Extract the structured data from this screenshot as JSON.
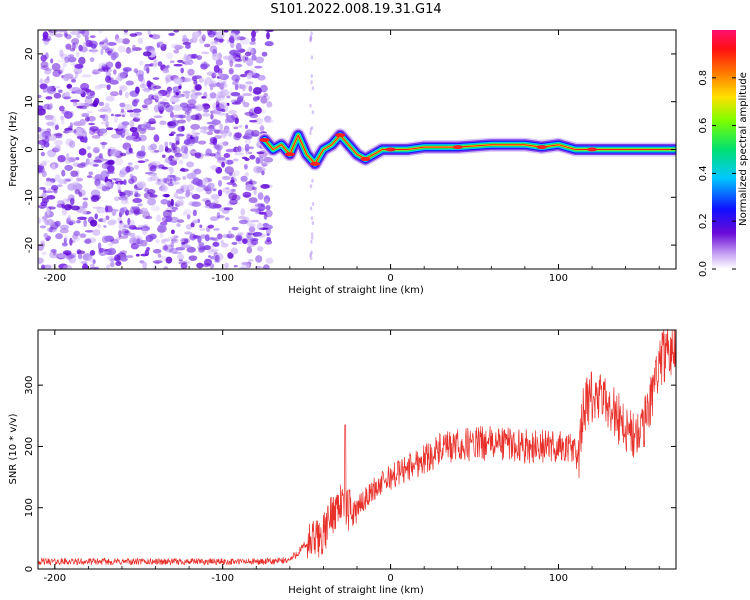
{
  "title": "S101.2022.008.19.31.G14",
  "chart_data": [
    {
      "type": "heatmap",
      "xlabel": "Height of straight line (km)",
      "ylabel": "Frequency (Hz)",
      "xlim": [
        -210,
        170
      ],
      "ylim": [
        -25,
        25
      ],
      "xticks": [
        -200,
        -100,
        0,
        100
      ],
      "yticks": [
        -20,
        -10,
        0,
        10,
        20
      ],
      "grid": false,
      "colorbar": {
        "label": "Normalized spectral amplitude",
        "range": [
          0,
          1
        ],
        "ticks": [
          "0.0",
          "0.2",
          "0.4",
          "0.6",
          "0.8"
        ],
        "colormap": "rainbow (purple-blue-cyan-green-yellow-orange-red-pink)"
      },
      "features": {
        "noise_region_x": [
          -210,
          -72
        ],
        "tone_track": {
          "x": [
            -75,
            -70,
            -65,
            -60,
            -55,
            -50,
            -45,
            -40,
            -35,
            -30,
            -25,
            -20,
            -15,
            -10,
            -5,
            0,
            10,
            20,
            40,
            60,
            80,
            90,
            100,
            110,
            120,
            140,
            170
          ],
          "y": [
            2,
            0,
            1,
            -1,
            3,
            -1,
            -3,
            0,
            1,
            3,
            1,
            -1,
            -2,
            -1,
            0,
            0,
            0,
            0.5,
            0.5,
            1,
            1,
            0.5,
            1,
            0,
            0,
            0,
            0
          ]
        },
        "spike_at_x": -47
      }
    },
    {
      "type": "line",
      "xlabel": "Height of straight line (km)",
      "ylabel": "SNR (10 * v/v)",
      "xlim": [
        -210,
        170
      ],
      "ylim": [
        0,
        390
      ],
      "xticks": [
        -200,
        -100,
        0,
        100
      ],
      "yticks": [
        0,
        100,
        200,
        300
      ],
      "grid": false,
      "color": "#e8302a",
      "x": [
        -210,
        -180,
        -150,
        -120,
        -90,
        -70,
        -60,
        -50,
        -40,
        -35,
        -30,
        -25,
        -20,
        -10,
        0,
        10,
        20,
        30,
        40,
        50,
        60,
        70,
        80,
        90,
        100,
        108,
        112,
        115,
        120,
        130,
        140,
        145,
        150,
        160,
        170
      ],
      "y": [
        12,
        12,
        12,
        12,
        12,
        12,
        15,
        40,
        55,
        90,
        110,
        95,
        100,
        130,
        150,
        165,
        180,
        195,
        200,
        205,
        205,
        205,
        200,
        200,
        200,
        195,
        185,
        260,
        280,
        270,
        230,
        215,
        220,
        340,
        370
      ],
      "annotations": {
        "spike_x": -27,
        "spike_y": 235
      }
    }
  ]
}
